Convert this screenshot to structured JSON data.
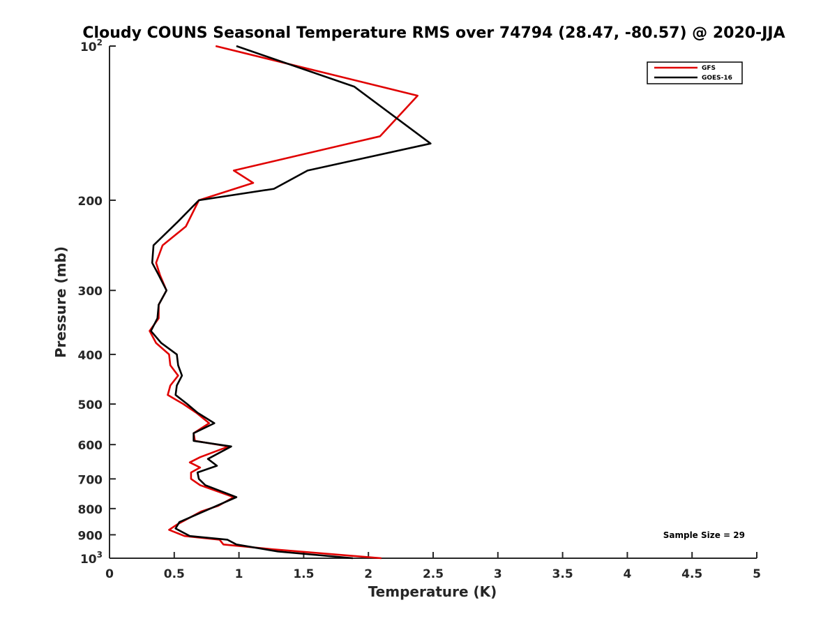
{
  "chart_data": {
    "type": "line",
    "title": "Cloudy COUNS Seasonal Temperature RMS over 74794 (28.47, -80.57) @ 2020-JJA",
    "xlabel": "Temperature (K)",
    "ylabel": "Pressure (mb)",
    "xlim": [
      0,
      5
    ],
    "ylim": [
      100,
      1000
    ],
    "y_scale": "log",
    "y_reversed": true,
    "x_ticks": [
      0,
      0.5,
      1,
      1.5,
      2,
      2.5,
      3,
      3.5,
      4,
      4.5,
      5
    ],
    "x_tick_labels": [
      "0",
      "0.5",
      "1",
      "1.5",
      "2",
      "2.5",
      "3",
      "3.5",
      "4",
      "4.5",
      "5"
    ],
    "y_ticks": [
      100,
      200,
      300,
      400,
      500,
      600,
      700,
      800,
      900,
      1000
    ],
    "y_tick_labels": [
      {
        "base": "10",
        "exp": "2"
      },
      {
        "base": "200",
        "exp": ""
      },
      {
        "base": "300",
        "exp": ""
      },
      {
        "base": "400",
        "exp": ""
      },
      {
        "base": "500",
        "exp": ""
      },
      {
        "base": "600",
        "exp": ""
      },
      {
        "base": "700",
        "exp": ""
      },
      {
        "base": "800",
        "exp": ""
      },
      {
        "base": "900",
        "exp": ""
      },
      {
        "base": "10",
        "exp": "3"
      }
    ],
    "grid": false,
    "legend_position": "top-right",
    "annotation": "Sample Size = 29",
    "series": [
      {
        "name": "GFS",
        "color": "#e00000",
        "points": [
          [
            0.82,
            100
          ],
          [
            2.38,
            125
          ],
          [
            2.09,
            150
          ],
          [
            0.96,
            175
          ],
          [
            1.11,
            185
          ],
          [
            0.69,
            200
          ],
          [
            0.59,
            225
          ],
          [
            0.41,
            245
          ],
          [
            0.36,
            265
          ],
          [
            0.39,
            280
          ],
          [
            0.44,
            300
          ],
          [
            0.38,
            320
          ],
          [
            0.38,
            340
          ],
          [
            0.31,
            360
          ],
          [
            0.36,
            380
          ],
          [
            0.46,
            400
          ],
          [
            0.47,
            420
          ],
          [
            0.53,
            440
          ],
          [
            0.47,
            460
          ],
          [
            0.45,
            480
          ],
          [
            0.57,
            500
          ],
          [
            0.67,
            520
          ],
          [
            0.77,
            545
          ],
          [
            0.65,
            570
          ],
          [
            0.66,
            590
          ],
          [
            0.92,
            605
          ],
          [
            0.7,
            635
          ],
          [
            0.62,
            650
          ],
          [
            0.7,
            665
          ],
          [
            0.63,
            680
          ],
          [
            0.63,
            700
          ],
          [
            0.7,
            720
          ],
          [
            0.96,
            760
          ],
          [
            0.84,
            790
          ],
          [
            0.71,
            810
          ],
          [
            0.52,
            860
          ],
          [
            0.46,
            880
          ],
          [
            0.58,
            905
          ],
          [
            0.85,
            920
          ],
          [
            0.88,
            940
          ],
          [
            1.25,
            960
          ],
          [
            2.1,
            1000
          ]
        ]
      },
      {
        "name": "GOES-16",
        "color": "#000000",
        "points": [
          [
            0.98,
            100
          ],
          [
            1.89,
            120
          ],
          [
            2.48,
            155
          ],
          [
            1.53,
            175
          ],
          [
            1.27,
            190
          ],
          [
            0.69,
            200
          ],
          [
            0.53,
            220
          ],
          [
            0.34,
            245
          ],
          [
            0.33,
            265
          ],
          [
            0.38,
            280
          ],
          [
            0.44,
            300
          ],
          [
            0.38,
            320
          ],
          [
            0.37,
            340
          ],
          [
            0.32,
            360
          ],
          [
            0.4,
            380
          ],
          [
            0.52,
            400
          ],
          [
            0.53,
            420
          ],
          [
            0.56,
            440
          ],
          [
            0.52,
            460
          ],
          [
            0.51,
            480
          ],
          [
            0.6,
            500
          ],
          [
            0.68,
            520
          ],
          [
            0.81,
            545
          ],
          [
            0.65,
            570
          ],
          [
            0.65,
            590
          ],
          [
            0.94,
            605
          ],
          [
            0.76,
            640
          ],
          [
            0.83,
            660
          ],
          [
            0.68,
            680
          ],
          [
            0.69,
            700
          ],
          [
            0.74,
            720
          ],
          [
            0.98,
            760
          ],
          [
            0.73,
            810
          ],
          [
            0.54,
            850
          ],
          [
            0.51,
            875
          ],
          [
            0.62,
            905
          ],
          [
            0.91,
            920
          ],
          [
            0.98,
            940
          ],
          [
            1.3,
            970
          ],
          [
            1.88,
            1000
          ]
        ]
      }
    ]
  }
}
